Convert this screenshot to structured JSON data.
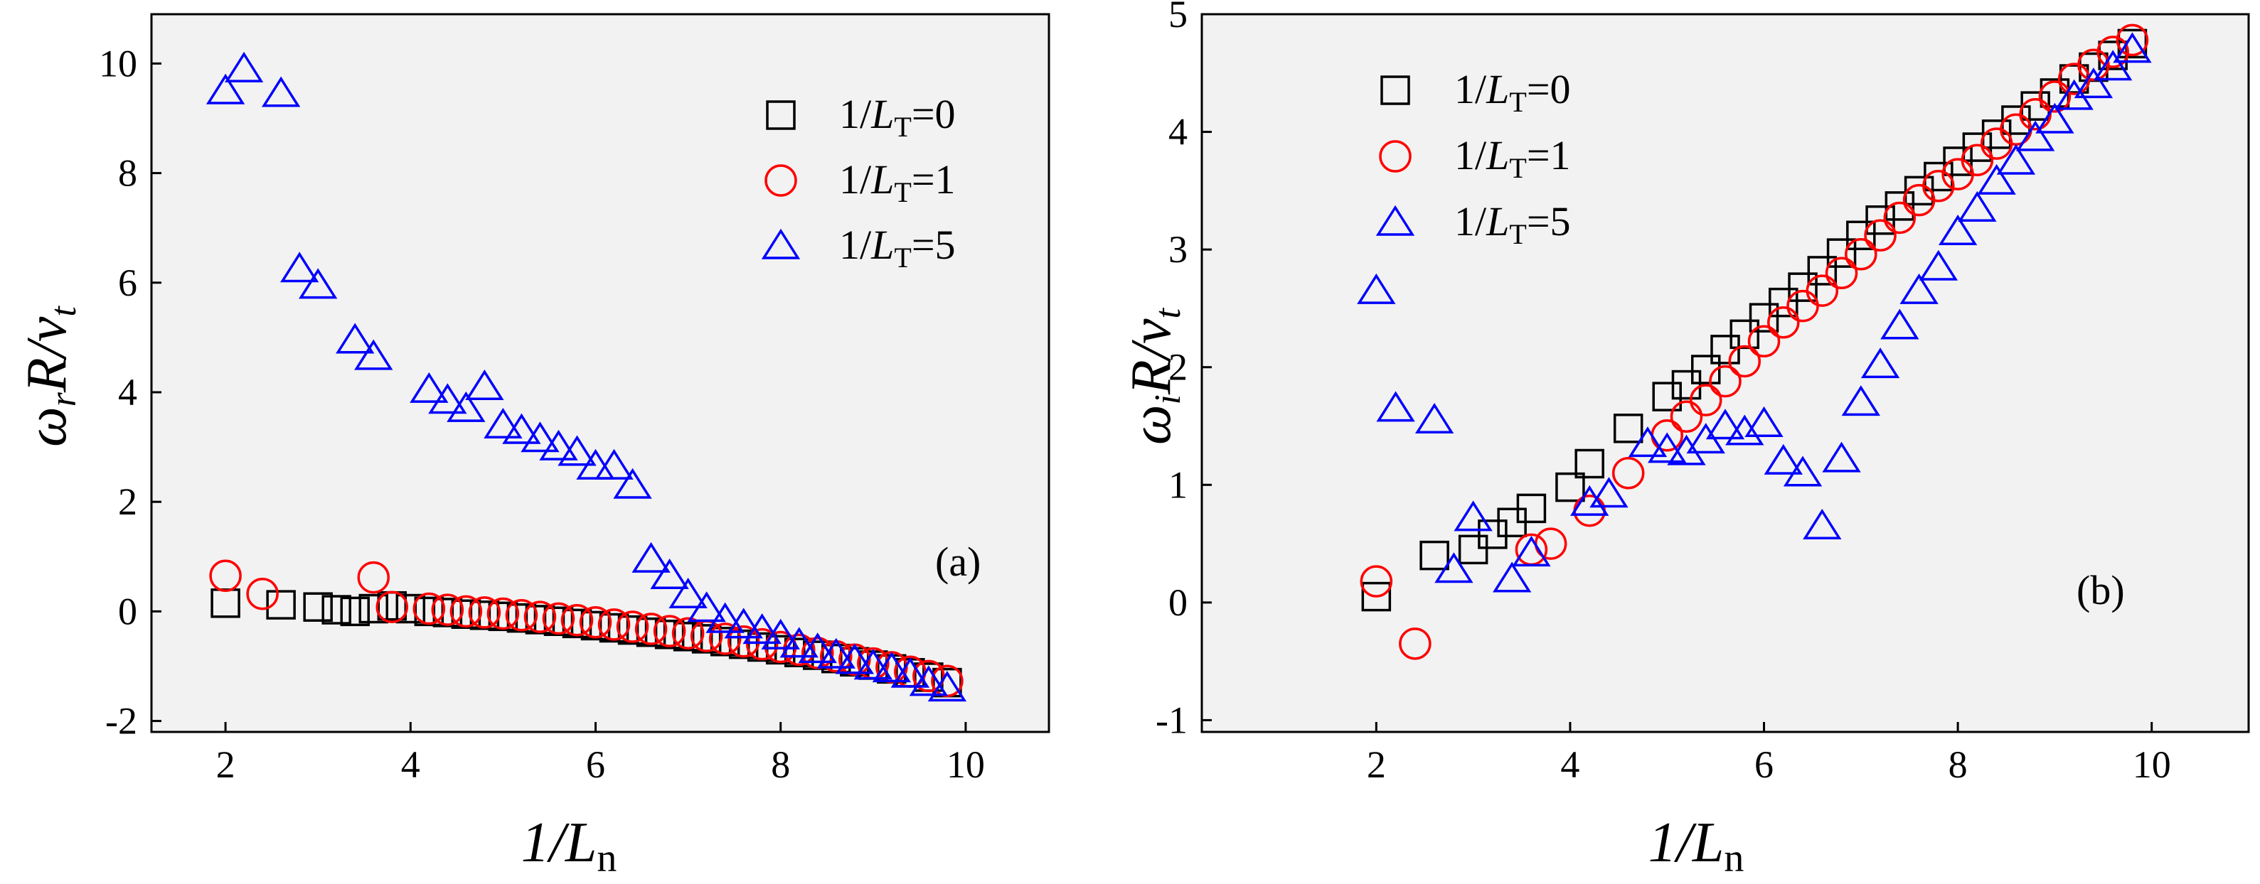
{
  "colors": {
    "s0": "#000000",
    "s1": "#ff0000",
    "s5": "#0000ff",
    "plot_bg": "#f2f2f2"
  },
  "chart_data": [
    {
      "panel": "(a)",
      "type": "scatter",
      "xlabel_main": "1/L",
      "xlabel_sub": "n",
      "ylabel": "ω_r R/v_t",
      "ylabel_parts": {
        "omega": "ω",
        "omega_sub": "r",
        "rest": "R/v",
        "v_sub": "t"
      },
      "xlim": [
        1.2,
        10.9
      ],
      "ylim": [
        -2.2,
        10.9
      ],
      "xticks": [
        2,
        4,
        6,
        8,
        10
      ],
      "xtick_labels": [
        "2",
        "4",
        "6",
        "8",
        "10"
      ],
      "yticks": [
        -2,
        0,
        2,
        4,
        6,
        8,
        10
      ],
      "ytick_labels": [
        "-2",
        "0",
        "2",
        "4",
        "6",
        "8",
        "10"
      ],
      "legend_position": "top-right",
      "series": [
        {
          "name": "1/L_T=0",
          "legend_prefix": "1/",
          "legend_var": "L",
          "legend_sub": "T",
          "legend_suffix": "=0",
          "marker": "square",
          "color": "#000000",
          "x": [
            2.0,
            2.6,
            3.0,
            3.2,
            3.4,
            3.6,
            3.8,
            4.0,
            4.2,
            4.4,
            4.6,
            4.8,
            5.0,
            5.2,
            5.4,
            5.6,
            5.8,
            6.0,
            6.2,
            6.4,
            6.6,
            6.8,
            7.0,
            7.2,
            7.4,
            7.6,
            7.8,
            8.0,
            8.2,
            8.4,
            8.6,
            8.8,
            9.0,
            9.2,
            9.4,
            9.6,
            9.8
          ],
          "y": [
            0.15,
            0.12,
            0.08,
            0.03,
            0.0,
            0.05,
            0.1,
            0.05,
            0.0,
            -0.02,
            -0.05,
            -0.07,
            -0.09,
            -0.12,
            -0.15,
            -0.18,
            -0.22,
            -0.26,
            -0.3,
            -0.34,
            -0.38,
            -0.42,
            -0.46,
            -0.5,
            -0.55,
            -0.6,
            -0.65,
            -0.7,
            -0.75,
            -0.8,
            -0.86,
            -0.92,
            -0.98,
            -1.05,
            -1.12,
            -1.2,
            -1.3
          ]
        },
        {
          "name": "1/L_T=1",
          "legend_prefix": "1/",
          "legend_var": "L",
          "legend_sub": "T",
          "legend_suffix": "=1",
          "marker": "circle",
          "color": "#ff0000",
          "x": [
            2.0,
            2.4,
            3.6,
            3.8,
            4.2,
            4.4,
            4.6,
            4.8,
            5.0,
            5.2,
            5.4,
            5.6,
            5.8,
            6.0,
            6.2,
            6.4,
            6.6,
            6.8,
            7.0,
            7.2,
            7.4,
            7.6,
            7.8,
            8.0,
            8.2,
            8.4,
            8.6,
            8.8,
            9.0,
            9.2,
            9.4,
            9.6,
            9.8
          ],
          "y": [
            0.65,
            0.32,
            0.62,
            0.08,
            0.05,
            0.03,
            0.0,
            -0.02,
            -0.04,
            -0.07,
            -0.1,
            -0.13,
            -0.16,
            -0.2,
            -0.24,
            -0.28,
            -0.32,
            -0.36,
            -0.4,
            -0.45,
            -0.5,
            -0.55,
            -0.6,
            -0.65,
            -0.7,
            -0.76,
            -0.82,
            -0.88,
            -0.95,
            -1.02,
            -1.1,
            -1.18,
            -1.27
          ]
        },
        {
          "name": "1/L_T=5",
          "legend_prefix": "1/",
          "legend_var": "L",
          "legend_sub": "T",
          "legend_suffix": "=5",
          "marker": "triangle",
          "color": "#0000ff",
          "x": [
            2.0,
            2.2,
            2.6,
            2.8,
            3.0,
            3.4,
            3.6,
            4.2,
            4.4,
            4.6,
            4.8,
            5.0,
            5.2,
            5.4,
            5.6,
            5.8,
            6.0,
            6.2,
            6.4,
            6.6,
            6.8,
            7.0,
            7.2,
            7.4,
            7.6,
            7.8,
            8.0,
            8.2,
            8.4,
            8.6,
            8.8,
            9.0,
            9.2,
            9.4,
            9.6,
            9.8
          ],
          "y": [
            9.5,
            9.9,
            9.45,
            6.25,
            5.95,
            4.95,
            4.65,
            4.05,
            3.85,
            3.7,
            4.1,
            3.4,
            3.3,
            3.15,
            3.0,
            2.9,
            2.65,
            2.65,
            2.3,
            0.95,
            0.65,
            0.3,
            0.05,
            -0.15,
            -0.25,
            -0.35,
            -0.45,
            -0.6,
            -0.7,
            -0.8,
            -0.9,
            -1.0,
            -1.05,
            -1.15,
            -1.3,
            -1.4
          ]
        }
      ]
    },
    {
      "panel": "(b)",
      "type": "scatter",
      "xlabel_main": "1/L",
      "xlabel_sub": "n",
      "ylabel": "ω_i R/v_t",
      "ylabel_parts": {
        "omega": "ω",
        "omega_sub": "i",
        "rest": "R/v",
        "v_sub": "t"
      },
      "xlim": [
        0.2,
        11.0
      ],
      "ylim": [
        -1.1,
        5.0
      ],
      "xticks": [
        2,
        4,
        6,
        8,
        10
      ],
      "xtick_labels": [
        "2",
        "4",
        "6",
        "8",
        "10"
      ],
      "yticks": [
        -1,
        0,
        1,
        2,
        3,
        4,
        5
      ],
      "ytick_labels": [
        "-1",
        "0",
        "1",
        "2",
        "3",
        "4",
        "5"
      ],
      "legend_position": "top-left",
      "series": [
        {
          "name": "1/L_T=0",
          "legend_prefix": "1/",
          "legend_var": "L",
          "legend_sub": "T",
          "legend_suffix": "=0",
          "marker": "square",
          "color": "#000000",
          "x": [
            2.0,
            2.6,
            3.0,
            3.2,
            3.4,
            3.6,
            4.0,
            4.2,
            4.6,
            5.0,
            5.2,
            5.4,
            5.6,
            5.8,
            6.0,
            6.2,
            6.4,
            6.6,
            6.8,
            7.0,
            7.2,
            7.4,
            7.6,
            7.8,
            8.0,
            8.2,
            8.4,
            8.6,
            8.8,
            9.0,
            9.2,
            9.4,
            9.6,
            9.8
          ],
          "y": [
            0.05,
            0.4,
            0.45,
            0.58,
            0.68,
            0.8,
            0.98,
            1.18,
            1.48,
            1.75,
            1.85,
            1.98,
            2.15,
            2.28,
            2.42,
            2.55,
            2.68,
            2.82,
            2.97,
            3.12,
            3.25,
            3.37,
            3.5,
            3.62,
            3.75,
            3.87,
            3.98,
            4.1,
            4.22,
            4.33,
            4.45,
            4.55,
            4.65,
            4.75
          ]
        },
        {
          "name": "1/L_T=1",
          "legend_prefix": "1/",
          "legend_var": "L",
          "legend_sub": "T",
          "legend_suffix": "=1",
          "marker": "circle",
          "color": "#ff0000",
          "x": [
            2.0,
            2.4,
            3.6,
            3.8,
            4.2,
            4.6,
            5.0,
            5.2,
            5.4,
            5.6,
            5.8,
            6.0,
            6.2,
            6.4,
            6.6,
            6.8,
            7.0,
            7.2,
            7.4,
            7.6,
            7.8,
            8.0,
            8.2,
            8.4,
            8.6,
            8.8,
            9.0,
            9.2,
            9.4,
            9.6,
            9.8
          ],
          "y": [
            0.18,
            -0.35,
            0.45,
            0.5,
            0.78,
            1.1,
            1.42,
            1.58,
            1.72,
            1.88,
            2.05,
            2.22,
            2.38,
            2.52,
            2.65,
            2.8,
            2.96,
            3.12,
            3.27,
            3.42,
            3.54,
            3.64,
            3.76,
            3.9,
            4.02,
            4.15,
            4.3,
            4.45,
            4.57,
            4.68,
            4.78
          ]
        },
        {
          "name": "1/L_T=5",
          "legend_prefix": "1/",
          "legend_var": "L",
          "legend_sub": "T",
          "legend_suffix": "=5",
          "marker": "triangle",
          "color": "#0000ff",
          "x": [
            2.0,
            2.2,
            2.6,
            2.8,
            3.0,
            3.4,
            3.6,
            4.2,
            4.4,
            4.8,
            5.0,
            5.2,
            5.4,
            5.6,
            5.8,
            6.0,
            6.2,
            6.4,
            6.6,
            6.8,
            7.0,
            7.2,
            7.4,
            7.6,
            7.8,
            8.0,
            8.2,
            8.4,
            8.6,
            8.8,
            9.0,
            9.2,
            9.4,
            9.6,
            9.8
          ],
          "y": [
            2.65,
            1.65,
            1.55,
            0.28,
            0.72,
            0.2,
            0.42,
            0.85,
            0.92,
            1.35,
            1.3,
            1.28,
            1.38,
            1.5,
            1.45,
            1.52,
            1.2,
            1.1,
            0.65,
            1.22,
            1.7,
            2.02,
            2.35,
            2.65,
            2.85,
            3.15,
            3.35,
            3.58,
            3.75,
            3.95,
            4.1,
            4.3,
            4.4,
            4.55,
            4.7
          ]
        }
      ]
    }
  ]
}
